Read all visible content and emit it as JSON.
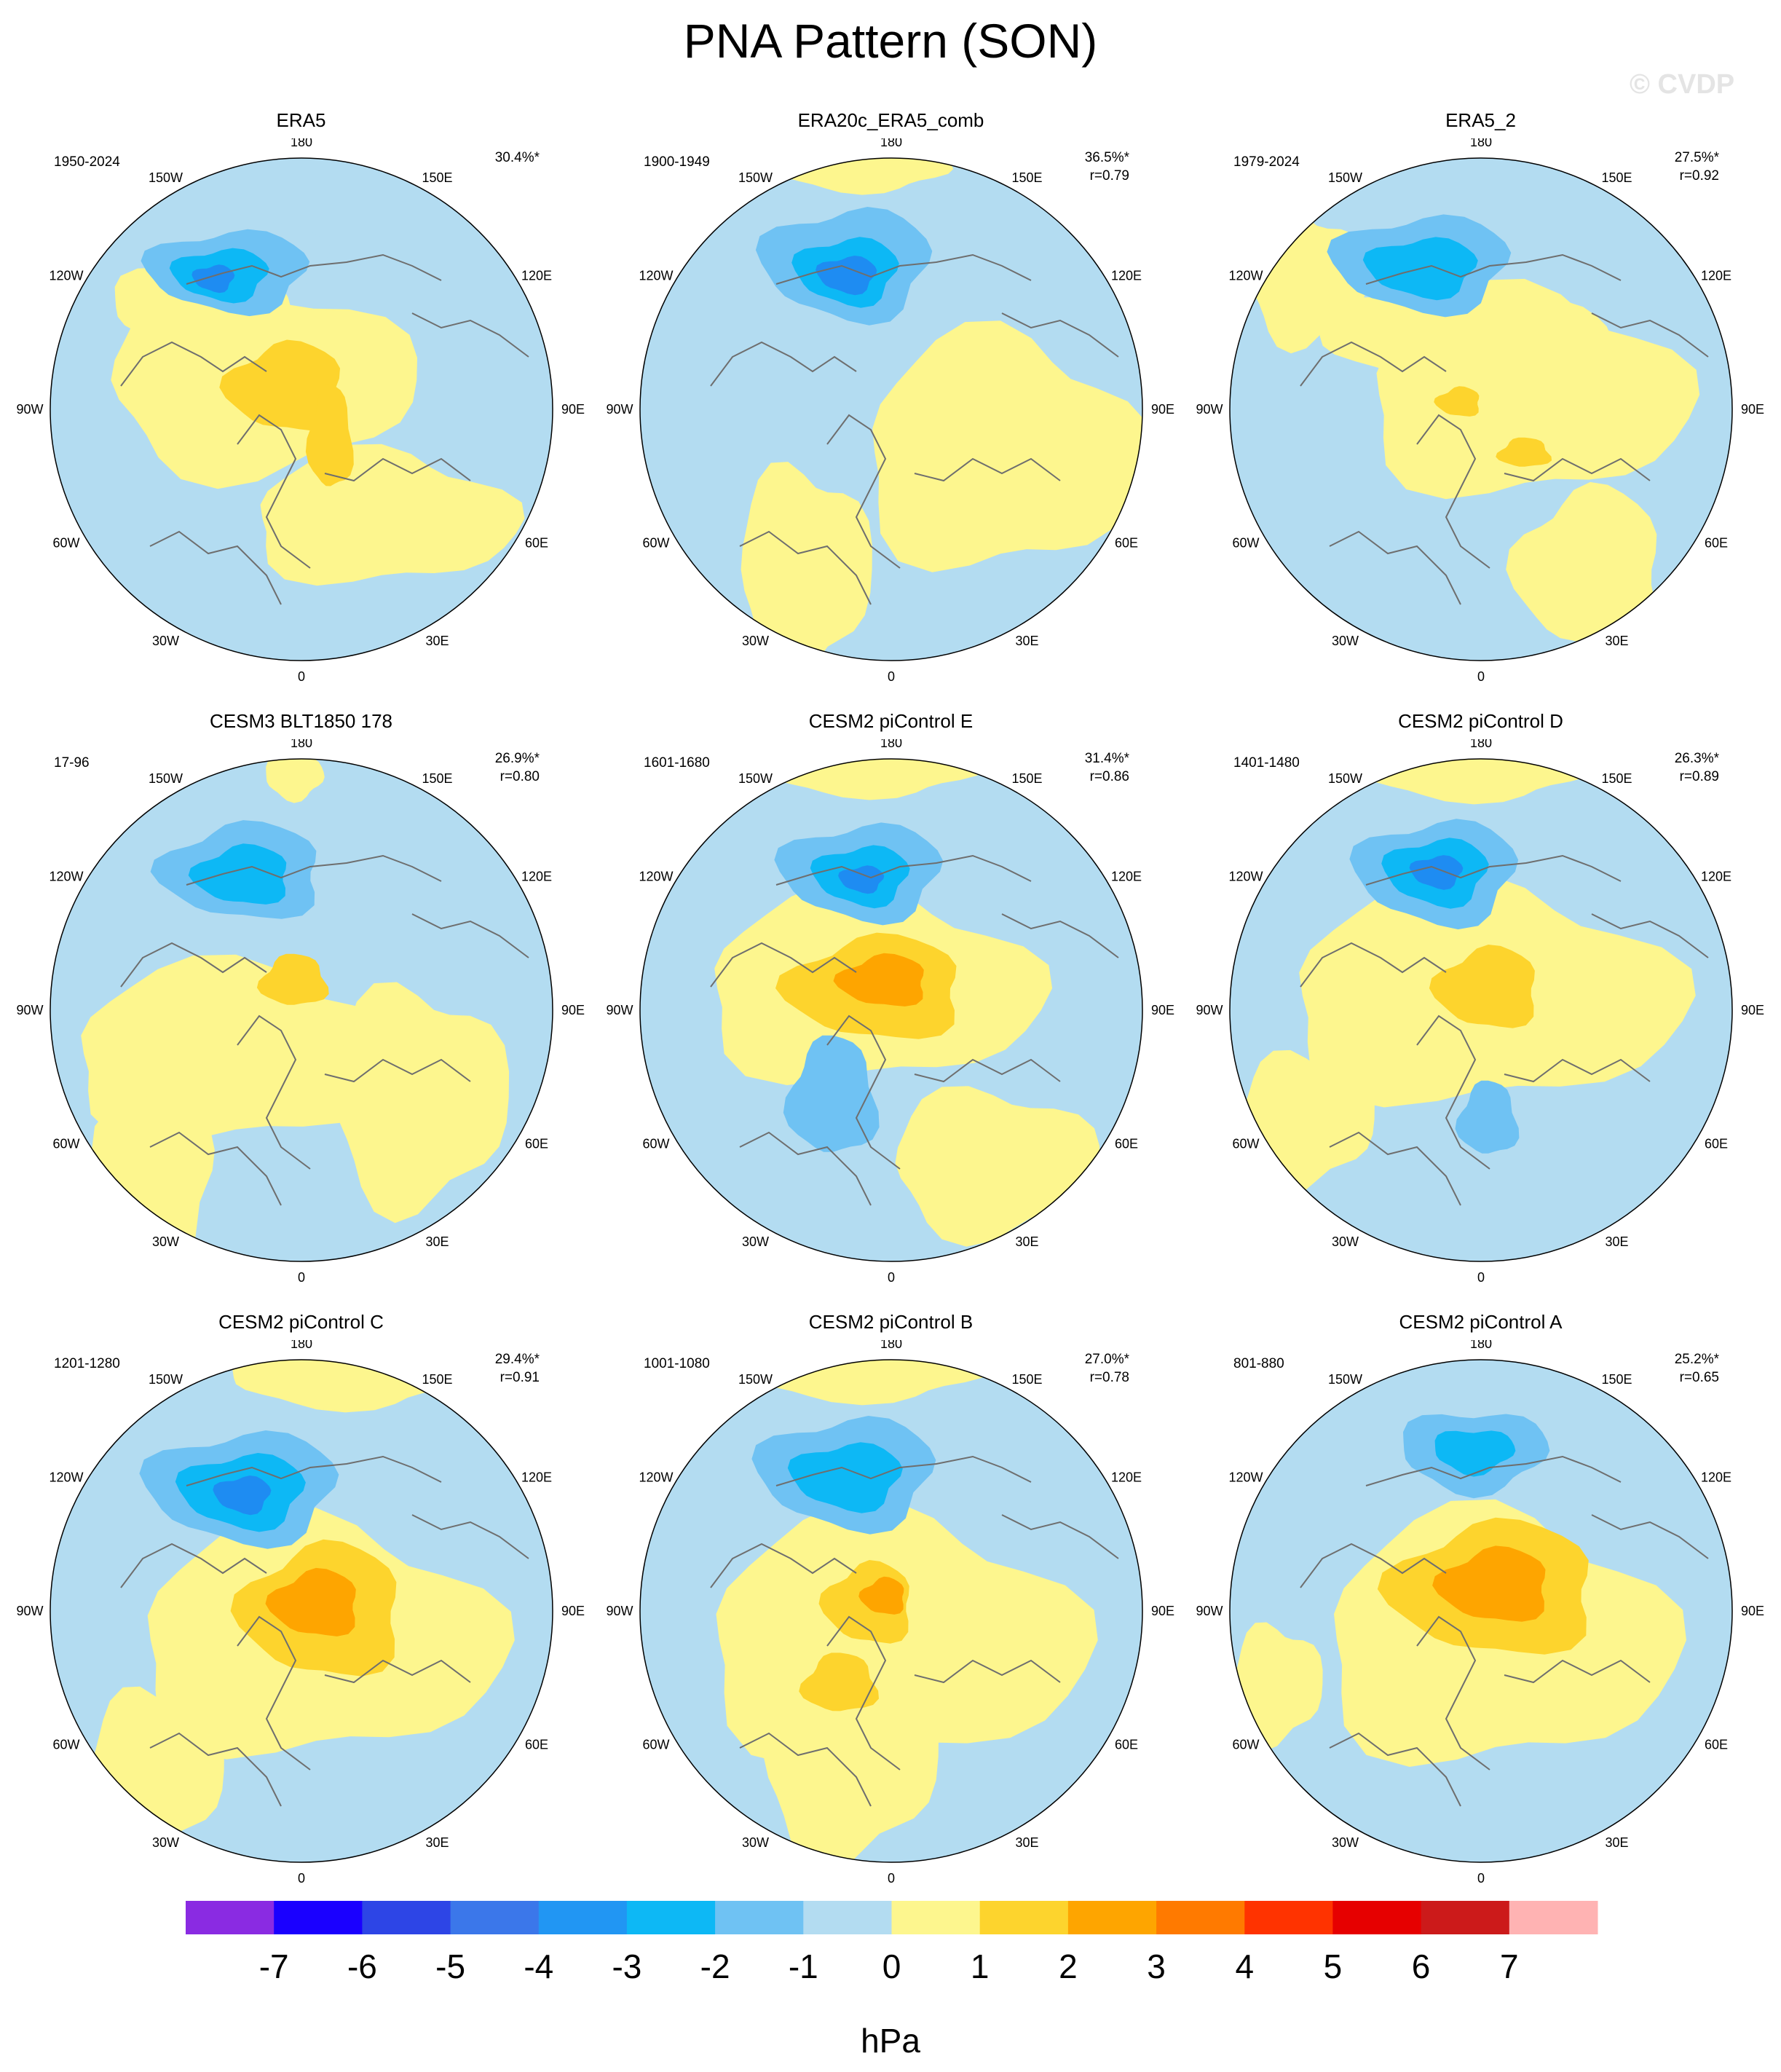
{
  "title": "PNA Pattern (SON)",
  "watermark": "© CVDP",
  "colors": {
    "pos1": "#fdf68e",
    "pos2": "#fdd42d",
    "pos3": "#fea500",
    "neg1": "#b3dcf1",
    "neg2": "#6fc2f3",
    "neg3": "#0db8f5",
    "neg4": "#1e8cf2",
    "coast": "#6e6e6e"
  },
  "longitude_labels": [
    "180",
    "150E",
    "120E",
    "90E",
    "60E",
    "30E",
    "0",
    "30W",
    "60W",
    "90W",
    "120W",
    "150W"
  ],
  "panels": [
    {
      "title": "ERA5",
      "period": "1950-2024",
      "pct": "30.4%*",
      "r": ""
    },
    {
      "title": "ERA20c_ERA5_comb",
      "period": "1900-1949",
      "pct": "36.5%*",
      "r": "r=0.79"
    },
    {
      "title": "ERA5_2",
      "period": "1979-2024",
      "pct": "27.5%*",
      "r": "r=0.92"
    },
    {
      "title": "CESM3 BLT1850 178",
      "period": "17-96",
      "pct": "26.9%*",
      "r": "r=0.80"
    },
    {
      "title": "CESM2 piControl E",
      "period": "1601-1680",
      "pct": "31.4%*",
      "r": "r=0.86"
    },
    {
      "title": "CESM2 piControl D",
      "period": "1401-1480",
      "pct": "26.3%*",
      "r": "r=0.89"
    },
    {
      "title": "CESM2 piControl C",
      "period": "1201-1280",
      "pct": "29.4%*",
      "r": "r=0.91"
    },
    {
      "title": "CESM2 piControl B",
      "period": "1001-1080",
      "pct": "27.0%*",
      "r": "r=0.78"
    },
    {
      "title": "CESM2 piControl A",
      "period": "801-880",
      "pct": "25.2%*",
      "r": "r=0.65"
    }
  ],
  "colorbar": {
    "colors": [
      "#8a2be2",
      "#1a00ff",
      "#2d45e6",
      "#3b77ea",
      "#2196f3",
      "#0db8f5",
      "#6fc2f3",
      "#b3dcf1",
      "#fdf68e",
      "#fdd42d",
      "#fea500",
      "#ff7a00",
      "#ff3300",
      "#e60000",
      "#cc1a1a",
      "#ffb3b3"
    ],
    "labels": [
      "-7",
      "-6",
      "-5",
      "-4",
      "-3",
      "-2",
      "-1",
      "0",
      "1",
      "2",
      "3",
      "4",
      "5",
      "6",
      "7"
    ],
    "unit": "hPa"
  }
}
